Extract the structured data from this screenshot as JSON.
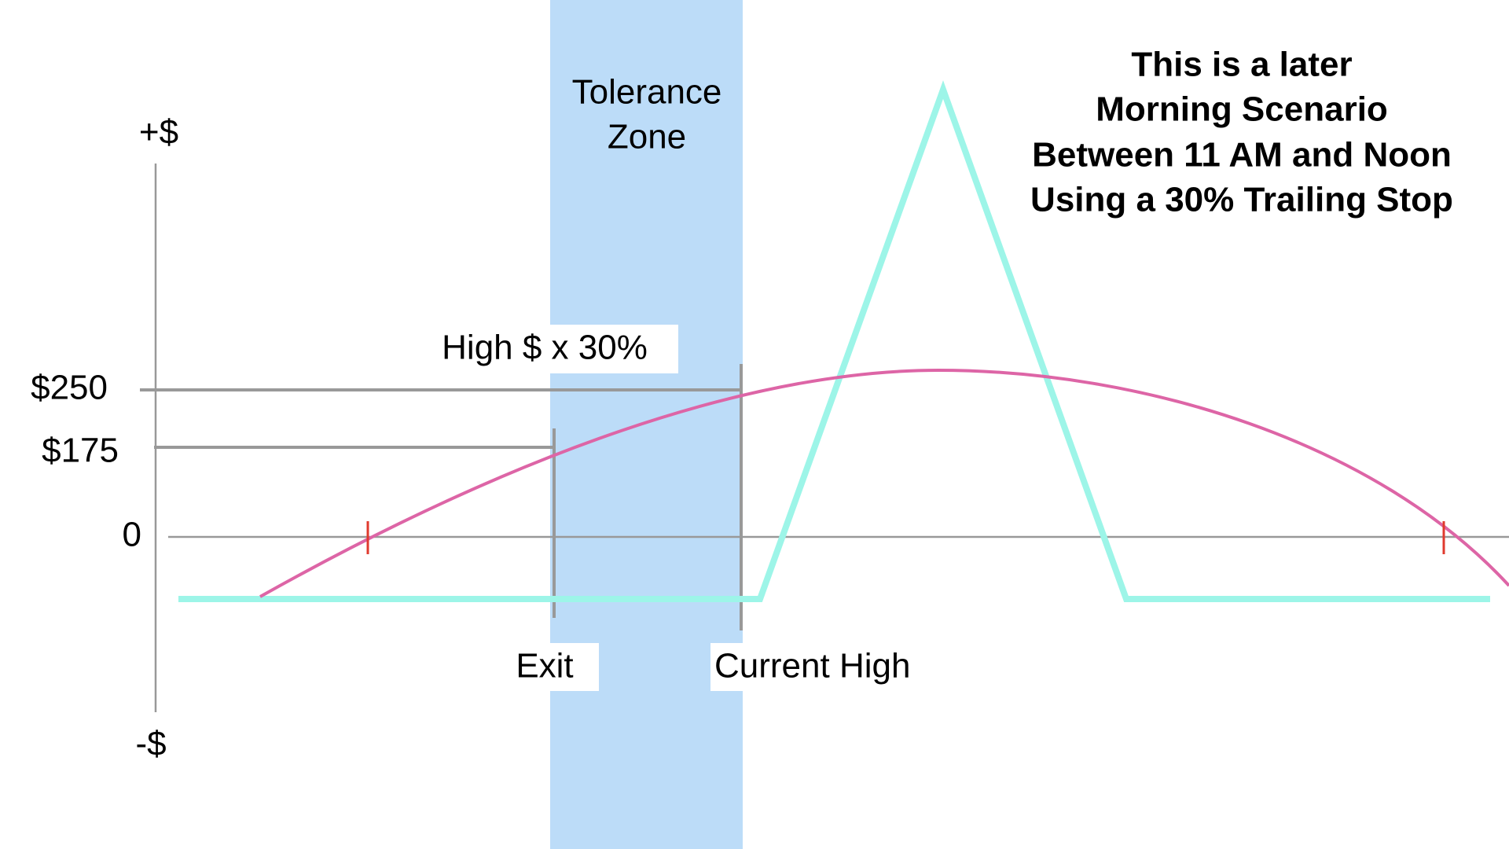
{
  "y_axis": {
    "top_label": "+$",
    "bottom_label": "-$",
    "ticks": [
      "$250",
      "$175",
      "0"
    ]
  },
  "zone_label": [
    "Tolerance",
    "Zone"
  ],
  "annotation": "High $ x 30%",
  "markers": {
    "exit": "Exit",
    "current_high": "Current High"
  },
  "title": [
    "This is a later",
    "Morning Scenario",
    "Between 11 AM and Noon",
    "Using a 30% Trailing Stop"
  ]
}
